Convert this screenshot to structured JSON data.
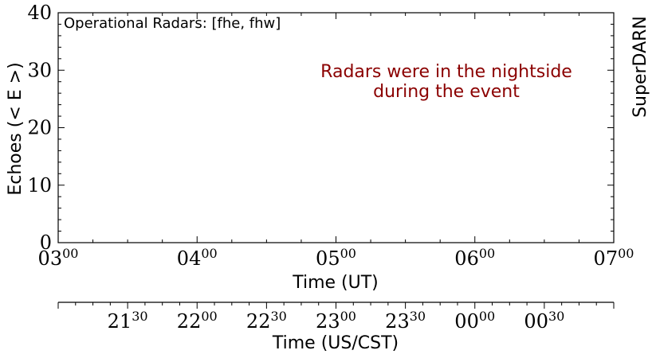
{
  "chart_data": {
    "type": "line",
    "title": "",
    "inset_label": "Operational Radars: [fhe, fhw]",
    "annotation_line1": "Radars were in the nightside",
    "annotation_line2": "during the event",
    "side_label": "SuperDARN",
    "ylabel": "Echoes (< E >)",
    "xlabel": "Time (UT)",
    "x2label": "Time (US/CST)",
    "ylim": [
      0,
      40
    ],
    "xlim_ut_hours": [
      3,
      7
    ],
    "y_ticks": [
      "0",
      "10",
      "20",
      "30",
      "40"
    ],
    "x_ticks_ut": [
      {
        "h": "03",
        "m": "00"
      },
      {
        "h": "04",
        "m": "00"
      },
      {
        "h": "05",
        "m": "00"
      },
      {
        "h": "06",
        "m": "00"
      },
      {
        "h": "07",
        "m": "00"
      }
    ],
    "x_ticks_cst": [
      {
        "h": "21",
        "m": "30"
      },
      {
        "h": "22",
        "m": "00"
      },
      {
        "h": "22",
        "m": "30"
      },
      {
        "h": "23",
        "m": "00"
      },
      {
        "h": "23",
        "m": "30"
      },
      {
        "h": "00",
        "m": "00"
      },
      {
        "h": "00",
        "m": "30"
      }
    ],
    "cst_offset_hours": -6,
    "series": [],
    "colors": {
      "axis": "#000000",
      "annotation": "#8b0000",
      "text": "#000000"
    }
  }
}
